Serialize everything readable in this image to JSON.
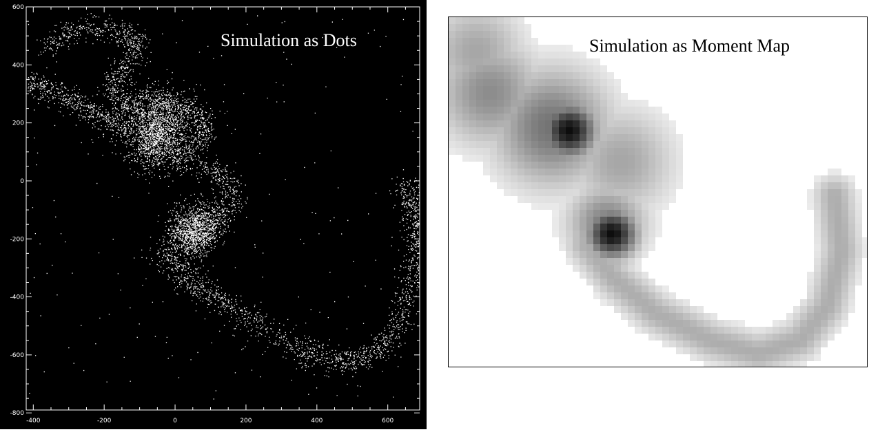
{
  "left_panel": {
    "title": "Simulation as Dots",
    "background_color": "#000000",
    "foreground_color": "#ffffff",
    "x_ticks": [
      "-400",
      "-200",
      "0",
      "200",
      "400",
      "600"
    ],
    "y_ticks": [
      "600",
      "400",
      "200",
      "0",
      "-200",
      "-400",
      "-600",
      "-800"
    ],
    "xlim": [
      -420,
      690
    ],
    "ylim": [
      -790,
      600
    ]
  },
  "right_panel": {
    "title": "Simulation as Moment Map",
    "background_color": "#ffffff",
    "map_shade_color": "#000000"
  }
}
